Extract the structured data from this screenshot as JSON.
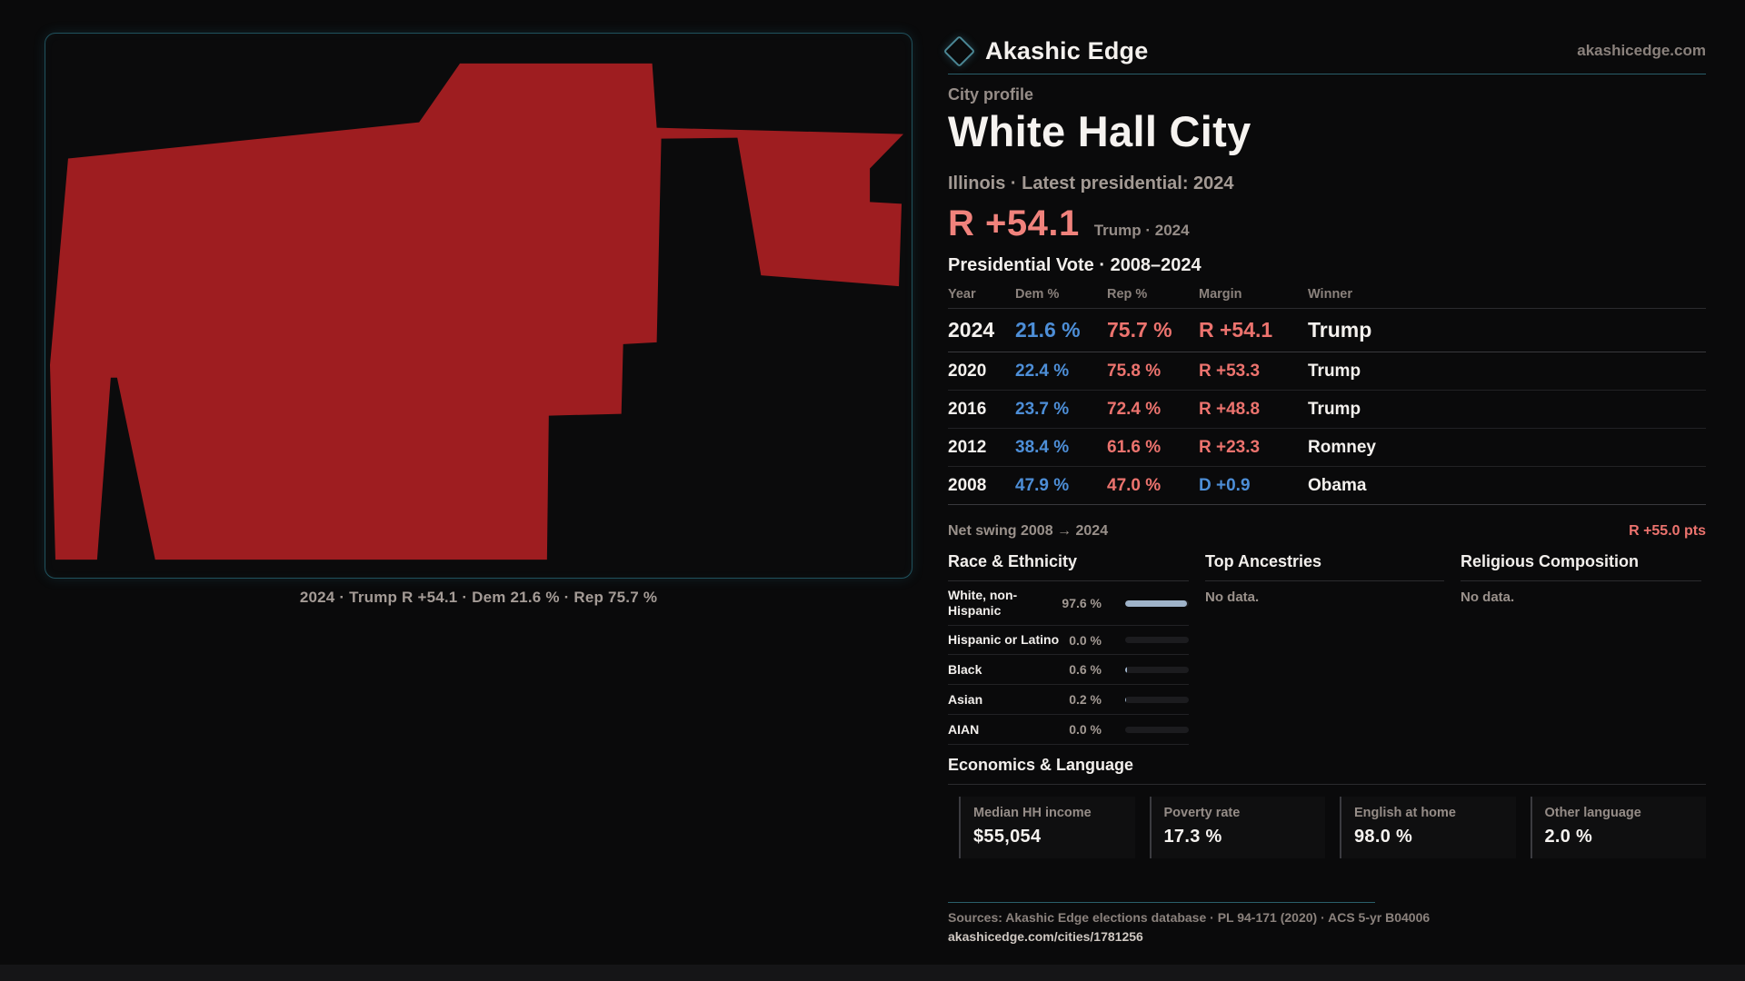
{
  "header": {
    "brand": "Akashic Edge",
    "site": "akashicedge.com"
  },
  "profile": {
    "kicker": "City profile",
    "title": "White Hall City",
    "subtitle": "Illinois · Latest presidential: 2024",
    "headline_margin": "R +54.1",
    "headline_context": "Trump · 2024"
  },
  "map": {
    "caption": "2024 · Trump R +54.1 · Dem 21.6 % · Rep 75.7 %",
    "fill_color": "#9e1d20",
    "border_color": "#20525e"
  },
  "vote_table": {
    "title": "Presidential Vote · 2008–2024",
    "columns": [
      "Year",
      "Dem %",
      "Rep %",
      "Margin",
      "Winner"
    ],
    "rows": [
      {
        "year": "2024",
        "dem": "21.6 %",
        "rep": "75.7 %",
        "margin": "R +54.1",
        "winner": "Trump",
        "highlight": true
      },
      {
        "year": "2020",
        "dem": "22.4 %",
        "rep": "75.8 %",
        "margin": "R +53.3",
        "winner": "Trump",
        "highlight": false
      },
      {
        "year": "2016",
        "dem": "23.7 %",
        "rep": "72.4 %",
        "margin": "R +48.8",
        "winner": "Trump",
        "highlight": false
      },
      {
        "year": "2012",
        "dem": "38.4 %",
        "rep": "61.6 %",
        "margin": "R +23.3",
        "winner": "Romney",
        "highlight": false
      },
      {
        "year": "2008",
        "dem": "47.9 %",
        "rep": "47.0 %",
        "margin": "D +0.9",
        "winner": "Obama",
        "highlight": false
      }
    ],
    "net_swing_label": "Net swing 2008 → 2024",
    "net_swing_value": "R +55.0 pts"
  },
  "race": {
    "title": "Race & Ethnicity",
    "rows": [
      {
        "label": "White, non-Hispanic",
        "value": "97.6 %",
        "pct": 97.6
      },
      {
        "label": "Hispanic or Latino",
        "value": "0.0 %",
        "pct": 0.0
      },
      {
        "label": "Black",
        "value": "0.6 %",
        "pct": 0.6
      },
      {
        "label": "Asian",
        "value": "0.2 %",
        "pct": 0.2
      },
      {
        "label": "AIAN",
        "value": "0.0 %",
        "pct": 0.0
      }
    ]
  },
  "ancestries": {
    "title": "Top Ancestries",
    "empty": "No data."
  },
  "religion": {
    "title": "Religious Composition",
    "empty": "No data."
  },
  "economics": {
    "title": "Economics & Language",
    "stats": [
      {
        "label": "Median HH income",
        "value": "$55,054"
      },
      {
        "label": "Poverty rate",
        "value": "17.3 %"
      },
      {
        "label": "English at home",
        "value": "98.0 %"
      },
      {
        "label": "Other language",
        "value": "2.0 %"
      }
    ]
  },
  "footer": {
    "sources": "Sources: Akashic Edge elections database · PL 94-171 (2020) · ACS 5-yr B04006",
    "link": "akashicedge.com/cities/1781256"
  },
  "colors": {
    "dem": "#4d8ed7",
    "rep": "#ec736e",
    "bar_fill": "#9fb3c9",
    "accent_teal": "#2a5f6b"
  }
}
